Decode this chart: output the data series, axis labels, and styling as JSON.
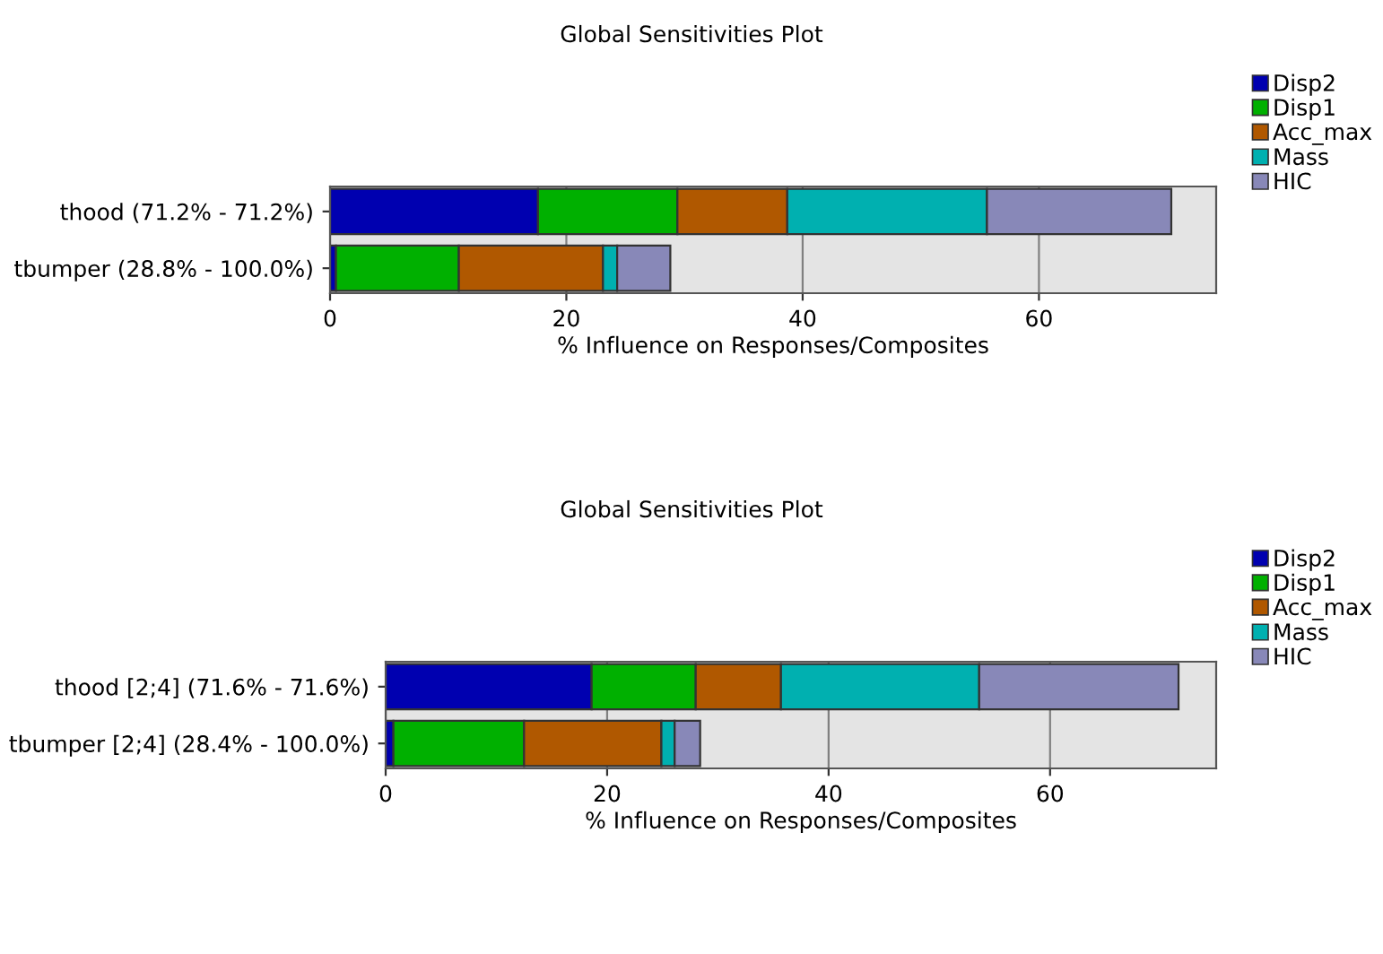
{
  "chart_data": [
    {
      "type": "bar",
      "orientation": "horizontal",
      "stacked": true,
      "title": "Global Sensitivities Plot",
      "xlabel": "% Influence on Responses/Composites",
      "categories": [
        "thood (71.2% - 71.2%)",
        "tbumper (28.8% - 100.0%)"
      ],
      "series": [
        {
          "name": "Disp2",
          "color": "#0000b0",
          "values": [
            17.6,
            0.5
          ]
        },
        {
          "name": "Disp1",
          "color": "#00b000",
          "values": [
            11.8,
            10.4
          ]
        },
        {
          "name": "Acc_max",
          "color": "#b05800",
          "values": [
            9.3,
            12.2
          ]
        },
        {
          "name": "Mass",
          "color": "#00b0b0",
          "values": [
            16.9,
            1.2
          ]
        },
        {
          "name": "HIC",
          "color": "#8888b8",
          "values": [
            15.6,
            4.5
          ]
        }
      ],
      "xlim": [
        0,
        75
      ],
      "xticks": [
        0,
        20,
        40,
        60
      ],
      "grid": "x",
      "legend": "top right"
    },
    {
      "type": "bar",
      "orientation": "horizontal",
      "stacked": true,
      "title": "Global Sensitivities Plot",
      "xlabel": "% Influence on Responses/Composites",
      "categories": [
        "thood [2;4] (71.6% - 71.6%)",
        "tbumper [2;4] (28.4% - 100.0%)"
      ],
      "series": [
        {
          "name": "Disp2",
          "color": "#0000b0",
          "values": [
            18.6,
            0.7
          ]
        },
        {
          "name": "Disp1",
          "color": "#00b000",
          "values": [
            9.4,
            11.8
          ]
        },
        {
          "name": "Acc_max",
          "color": "#b05800",
          "values": [
            7.7,
            12.4
          ]
        },
        {
          "name": "Mass",
          "color": "#00b0b0",
          "values": [
            17.9,
            1.2
          ]
        },
        {
          "name": "HIC",
          "color": "#8888b8",
          "values": [
            18.0,
            2.3
          ]
        }
      ],
      "xlim": [
        0,
        75
      ],
      "xticks": [
        0,
        20,
        40,
        60
      ],
      "grid": "x",
      "legend": "top right"
    }
  ]
}
